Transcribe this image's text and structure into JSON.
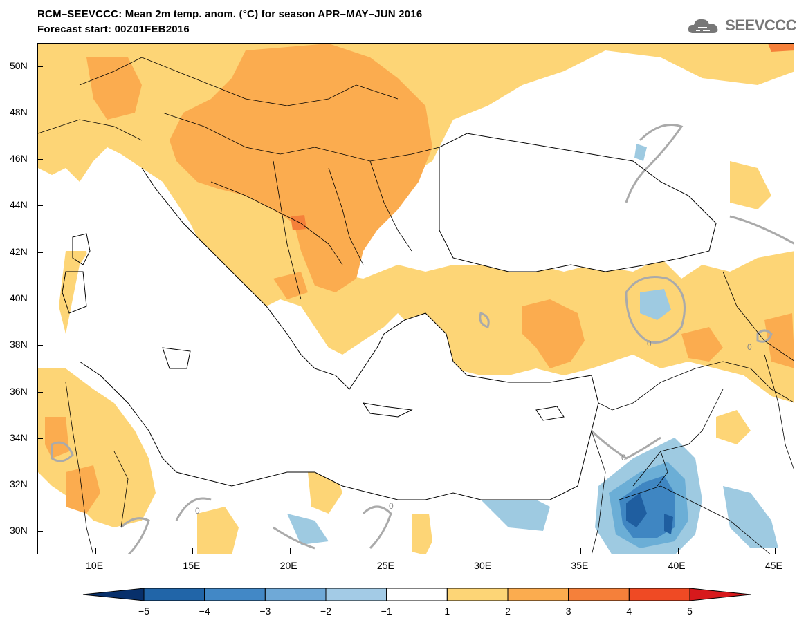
{
  "title": {
    "line1": "RCM–SEEVCCC: Mean 2m temp. anom. (°C) for season APR–MAY–JUN 2016",
    "line2": "Forecast start: 00Z01FEB2016"
  },
  "logo": {
    "text": "SEEVCCC",
    "icon": "cloud-icon"
  },
  "map": {
    "lon_range": [
      7,
      46
    ],
    "lat_range": [
      29,
      51
    ],
    "lat_ticks": [
      "50N",
      "48N",
      "46N",
      "44N",
      "42N",
      "40N",
      "38N",
      "36N",
      "34N",
      "32N",
      "30N"
    ],
    "lat_values": [
      50,
      48,
      46,
      44,
      42,
      40,
      38,
      36,
      34,
      32,
      30
    ],
    "lon_ticks": [
      "10E",
      "15E",
      "20E",
      "25E",
      "30E",
      "35E",
      "40E",
      "45E"
    ],
    "lon_values": [
      10,
      15,
      20,
      25,
      30,
      35,
      40,
      45
    ],
    "contour_labels": [
      "0",
      "0",
      "0",
      "0",
      "0"
    ],
    "colors": {
      "sea": "#ffffff",
      "anom_1_2": "#fdd576",
      "anom_2_3": "#fbac4f",
      "anom_3_4": "#f5803a",
      "anom_4_5": "#ef4a24",
      "anom_m1_m2": "#9ecae1",
      "anom_m2_m3": "#6baed6",
      "anom_m3_m4": "#3f86c2",
      "anom_m4_m5": "#1f5ea0"
    }
  },
  "colorbar": {
    "labels": [
      "−5",
      "−4",
      "−3",
      "−2",
      "−1",
      "1",
      "2",
      "3",
      "4",
      "5"
    ],
    "colors": [
      "#08306b",
      "#2165a8",
      "#4288c6",
      "#6fa9d7",
      "#a3cbe6",
      "#ffffff",
      "#fdd576",
      "#fbac4f",
      "#f5803a",
      "#ef4a24",
      "#d7191c"
    ]
  }
}
